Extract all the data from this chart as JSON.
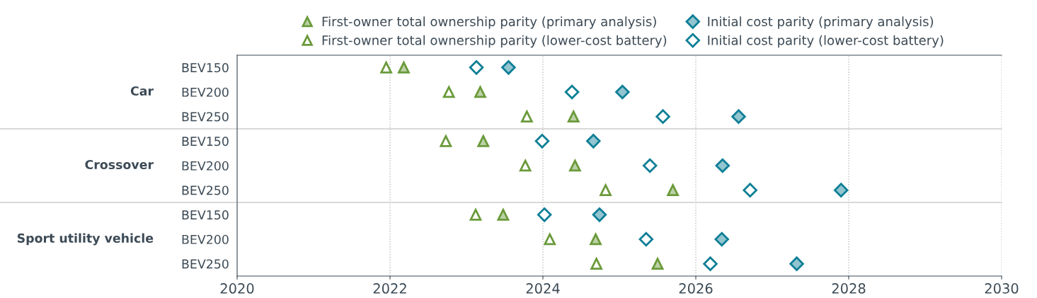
{
  "chart_data": {
    "type": "scatter",
    "orientation": "horizontal",
    "categories": [
      "BEV150",
      "BEV200",
      "BEV250",
      "BEV150",
      "BEV200",
      "BEV250",
      "BEV150",
      "BEV200",
      "BEV250"
    ],
    "annotations": [
      "Car",
      "Crossover",
      "Sport utility vehicle"
    ],
    "series": [
      {
        "name": "First-owner total ownership parity (primary analysis)",
        "color": "#6a9a3a",
        "marker": "triangle",
        "values": [
          2022.18,
          2023.18,
          2024.4,
          2023.22,
          2024.42,
          2025.7,
          2023.48,
          2024.69,
          2025.5
        ]
      },
      {
        "name": "First-owner total ownership parity (lower-cost battery)",
        "color": "#6a9a3a",
        "marker": "triangle",
        "values": [
          2021.95,
          2022.77,
          2023.79,
          2022.73,
          2023.77,
          2024.82,
          2023.12,
          2024.09,
          2024.7
        ]
      },
      {
        "name": "Initial cost parity (primary analysis)",
        "color": "#0e7f96",
        "marker": "diamond",
        "values": [
          2023.55,
          2025.04,
          2026.56,
          2024.66,
          2026.35,
          2027.9,
          2024.74,
          2026.34,
          2027.32
        ]
      },
      {
        "name": "Initial cost parity (lower-cost battery)",
        "color": "#0e7f96",
        "marker": "diamond",
        "values": [
          2023.13,
          2024.38,
          2025.57,
          2023.99,
          2025.4,
          2026.71,
          2024.02,
          2025.35,
          2026.19
        ]
      }
    ],
    "xlim": [
      2020,
      2030
    ],
    "xticks": [
      2020,
      2022,
      2024,
      2026,
      2028,
      2030
    ],
    "grid": "x",
    "legend": "top"
  }
}
